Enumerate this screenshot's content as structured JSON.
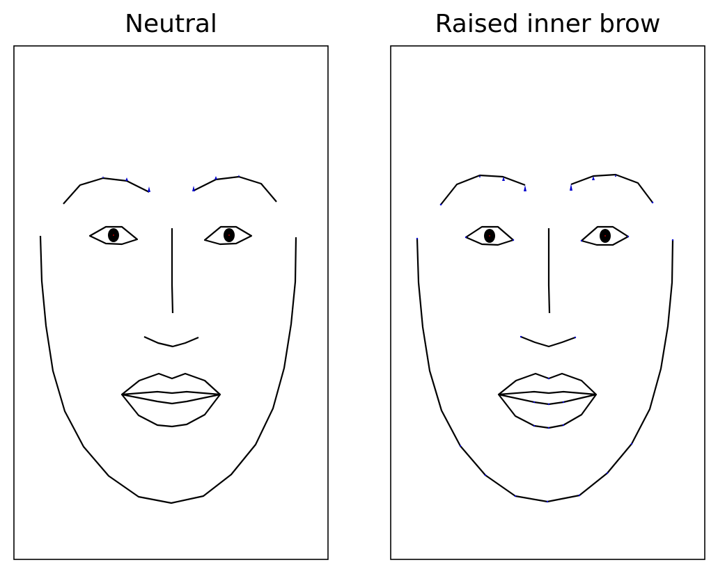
{
  "panels": [
    {
      "title": "Neutral",
      "expression": "neutral"
    },
    {
      "title": "Raised inner brow",
      "expression": "raised-inner-brow"
    }
  ],
  "colors": {
    "line": "#000000",
    "marker": "#0000cc",
    "pupil_dot": "#c00000"
  }
}
